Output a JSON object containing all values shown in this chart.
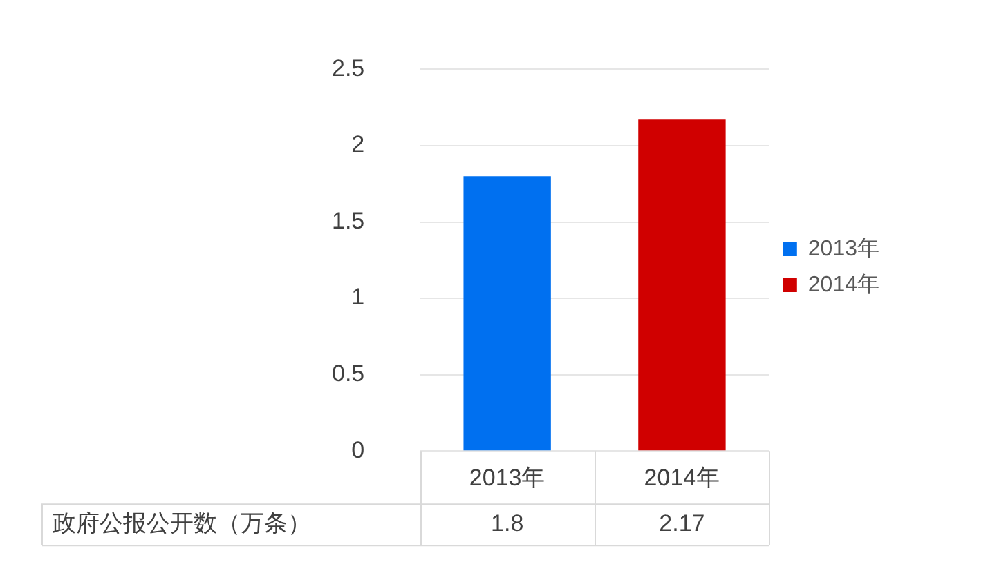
{
  "chart_data": {
    "type": "bar",
    "categories": [
      "2013年",
      "2014年"
    ],
    "series": [
      {
        "name": "2013年",
        "color": "#0070f0",
        "values": [
          1.8,
          null
        ]
      },
      {
        "name": "2014年",
        "color": "#d00000",
        "values": [
          null,
          2.17
        ]
      }
    ],
    "stacked": true,
    "annotations": [
      "政府公报公开数（万条）"
    ],
    "ylim": [
      0,
      2.5
    ],
    "yticks": [
      0,
      0.5,
      1,
      1.5,
      2,
      2.5
    ],
    "grid": "y",
    "legend": "right",
    "data_labels": true
  }
}
